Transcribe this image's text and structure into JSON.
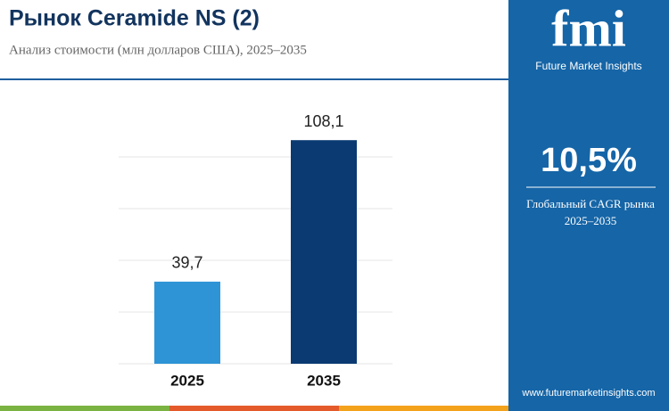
{
  "chart_data": {
    "type": "bar",
    "title": "Рынок Ceramide NS (2)",
    "subtitle": "Анализ стоимости (млн долларов США), 2025–2035",
    "categories": [
      "2025",
      "2035"
    ],
    "values": [
      39.7,
      108.1
    ],
    "value_labels": [
      "39,7",
      "108,1"
    ],
    "colors": [
      "#2e94d6",
      "#0b3a72"
    ],
    "ylim": [
      0,
      125
    ],
    "yticks": [
      0,
      25,
      50,
      75,
      100
    ],
    "grid": true
  },
  "panel": {
    "logo": "fmi",
    "brand": "Future Market Insights",
    "cagr": "10,5%",
    "cagr_label": "Глобальный CAGR рынка",
    "cagr_period": "2025–2035",
    "website": "www.futuremarketinsights.com"
  }
}
